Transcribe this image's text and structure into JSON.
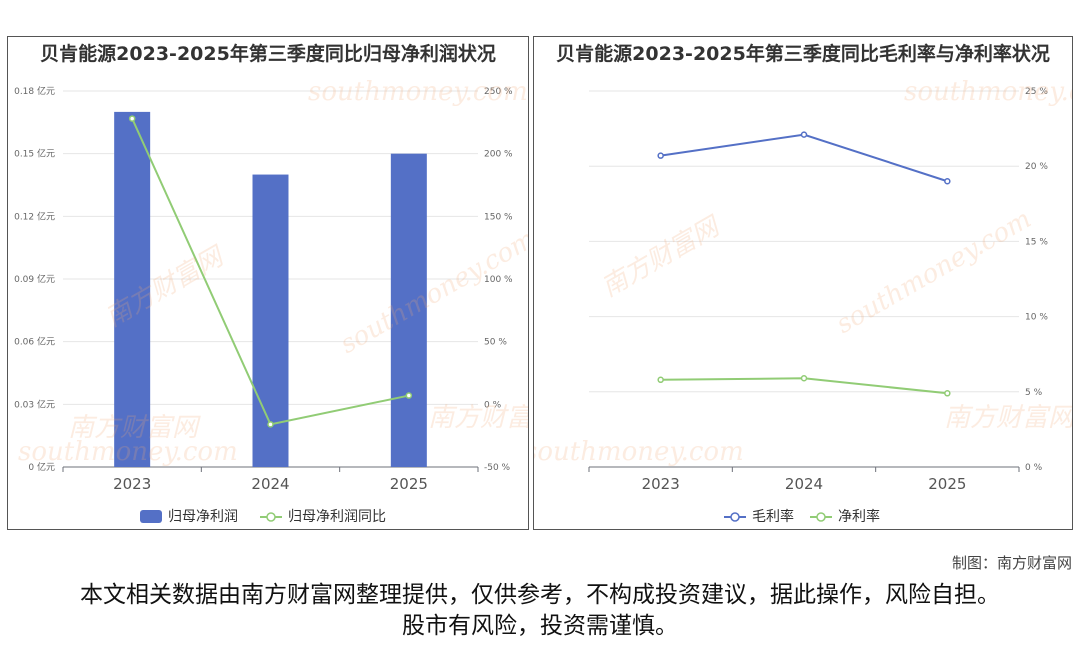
{
  "chart_data": [
    {
      "type": "bar",
      "title": "贝肯能源2023-2025年第三季度同比归母净利润状况",
      "categories": [
        "2023",
        "2024",
        "2025"
      ],
      "series": [
        {
          "name": "归母净利润",
          "kind": "bar",
          "axis": "left",
          "values": [
            0.17,
            0.14,
            0.15
          ]
        },
        {
          "name": "归母净利润同比",
          "kind": "line",
          "axis": "right",
          "values": [
            228,
            -16,
            7
          ]
        }
      ],
      "y_left": {
        "ticks": [
          "0 亿元",
          "0.03 亿元",
          "0.06 亿元",
          "0.09 亿元",
          "0.12 亿元",
          "0.15 亿元",
          "0.18 亿元"
        ],
        "range": [
          0,
          0.18
        ]
      },
      "y_right": {
        "ticks": [
          "-50 %",
          "0 %",
          "50 %",
          "100 %",
          "150 %",
          "200 %",
          "250 %"
        ],
        "range": [
          -50,
          250
        ]
      },
      "grid": true,
      "legend": "bottom",
      "colors": {
        "bar": "#5470c6",
        "line": "#91cc75"
      }
    },
    {
      "type": "line",
      "title": "贝肯能源2023-2025年第三季度同比毛利率与净利率状况",
      "categories": [
        "2023",
        "2024",
        "2025"
      ],
      "series": [
        {
          "name": "毛利率",
          "values": [
            20.7,
            22.1,
            19.0
          ]
        },
        {
          "name": "净利率",
          "values": [
            5.8,
            5.9,
            4.9
          ]
        }
      ],
      "y_right": {
        "ticks": [
          "0 %",
          "5 %",
          "10 %",
          "15 %",
          "20 %",
          "25 %"
        ],
        "range": [
          0,
          25
        ]
      },
      "grid": true,
      "legend": "bottom",
      "colors": {
        "s1": "#5470c6",
        "s2": "#91cc75"
      }
    }
  ],
  "watermark": {
    "cn": "南方财富网",
    "en": "southmoney.com"
  },
  "credit": "制图：南方财富网",
  "disclaimer": "本文相关数据由南方财富网整理提供，仅供参考，不构成投资建议，据此操作，风险自担。股市有风险，投资需谨慎。"
}
